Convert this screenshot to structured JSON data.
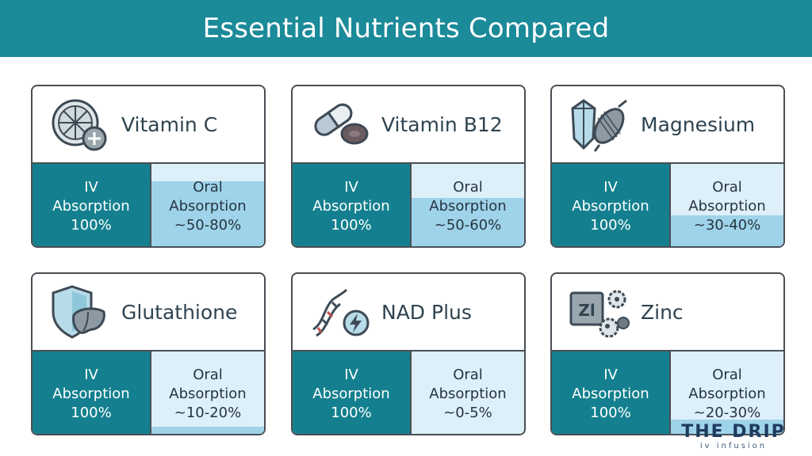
{
  "header": {
    "title": "Essential Nutrients Compared"
  },
  "colors": {
    "banner": "#1b8a99",
    "iv_panel": "#14808f",
    "oral_panel_light": "#ddeff8",
    "oral_panel_fill": "#9fd3ea",
    "card_border": "#4a4f55"
  },
  "cards": [
    {
      "title": "Vitamin C",
      "icon": "citrus-slice-plus-icon",
      "iv": {
        "line1": "IV",
        "line2": "Absorption",
        "line3": "100%"
      },
      "oral": {
        "line1": "Oral",
        "line2": "Absorption",
        "line3": "~50-80%"
      },
      "oral_fill_fraction": 0.8
    },
    {
      "title": "Vitamin B12",
      "icon": "capsule-and-cell-icon",
      "iv": {
        "line1": "IV",
        "line2": "Absorption",
        "line3": "100%"
      },
      "oral": {
        "line1": "Oral",
        "line2": "Absorption",
        "line3": "~50-60%"
      },
      "oral_fill_fraction": 0.6
    },
    {
      "title": "Magnesium",
      "icon": "crystal-and-muscle-icon",
      "iv": {
        "line1": "IV",
        "line2": "Absorption",
        "line3": "100%"
      },
      "oral": {
        "line1": "Oral",
        "line2": "Absorption",
        "line3": "~30-40%"
      },
      "oral_fill_fraction": 0.4
    },
    {
      "title": "Glutathione",
      "icon": "shield-liver-icon",
      "iv": {
        "line1": "IV",
        "line2": "Absorption",
        "line3": "100%"
      },
      "oral": {
        "line1": "Oral",
        "line2": "Absorption",
        "line3": "~10-20%"
      },
      "oral_fill_fraction": 0.12
    },
    {
      "title": "NAD Plus",
      "icon": "dna-lightning-icon",
      "iv": {
        "line1": "IV",
        "line2": "Absorption",
        "line3": "100%"
      },
      "oral": {
        "line1": "Oral",
        "line2": "Absorption",
        "line3": "~0-5%"
      },
      "oral_fill_fraction": 0.0
    },
    {
      "title": "Zinc",
      "icon": "zinc-element-cells-icon",
      "icon_text": "Zl",
      "iv": {
        "line1": "IV",
        "line2": "Absorption",
        "line3": "100%"
      },
      "oral": {
        "line1": "Oral",
        "line2": "Absorption",
        "line3": "~20-30%"
      },
      "oral_fill_fraction": 0.2
    }
  ],
  "logo": {
    "main": "THE DRIP",
    "sub": "iv infusion"
  }
}
